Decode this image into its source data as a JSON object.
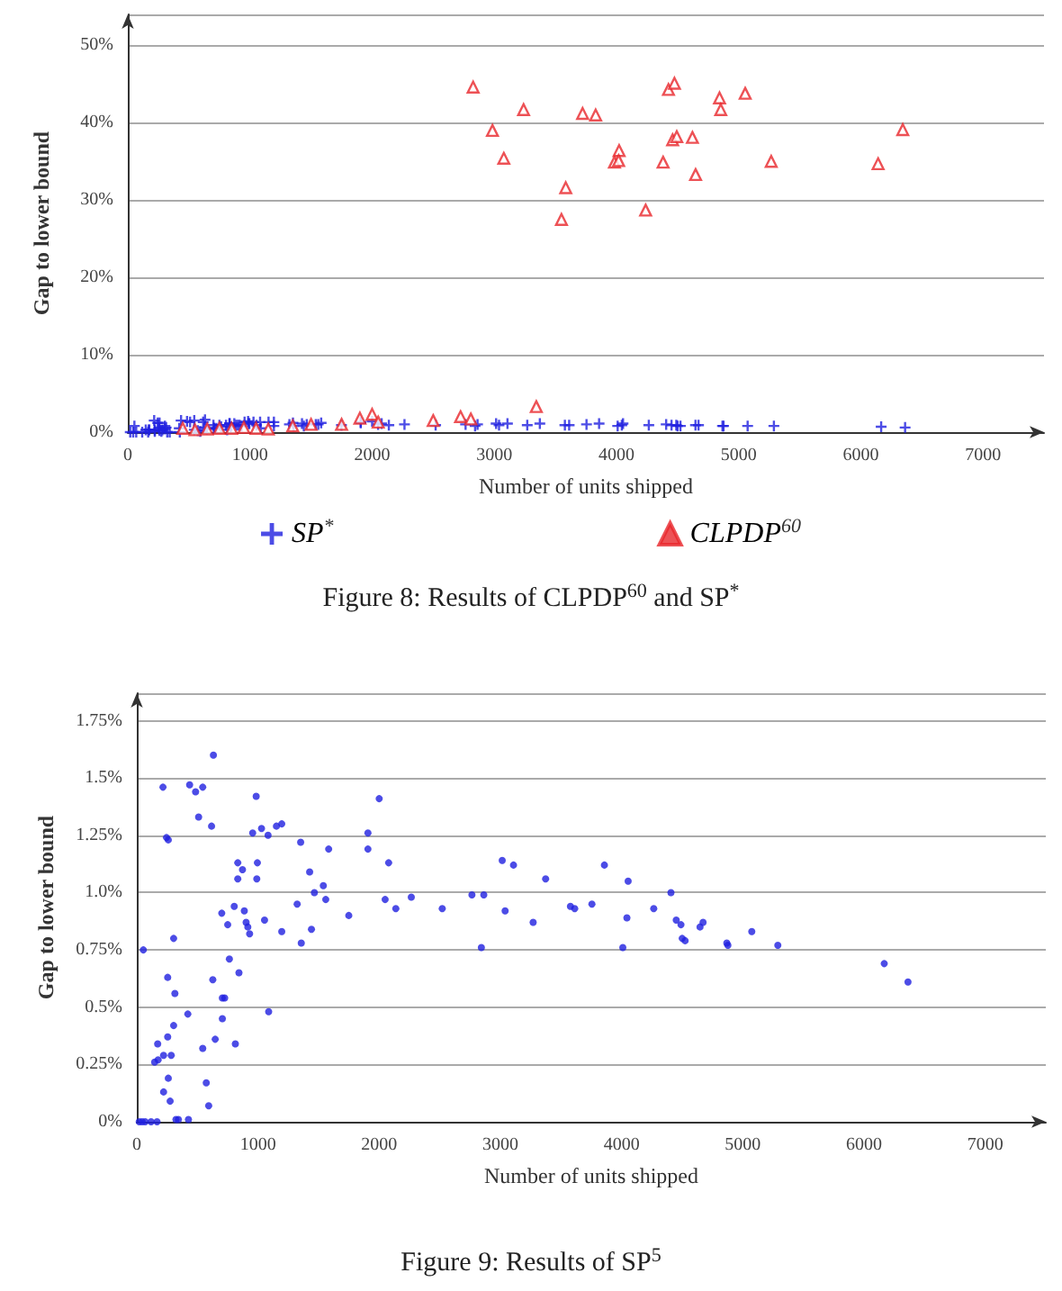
{
  "chart_data": [
    {
      "type": "scatter",
      "xlabel": "Number of units shipped",
      "ylabel": "Gap to lower bound",
      "annotations": [
        "Figure 8: Results of CLPDP$^{60}$ and SP$^{*}$"
      ],
      "xlim": [
        0,
        7500
      ],
      "xticks": [
        0,
        1000,
        2000,
        3000,
        4000,
        5000,
        6000,
        7000
      ],
      "ylim": [
        0,
        54
      ],
      "yticks": [
        {
          "value": 0,
          "label": "0%"
        },
        {
          "value": 10,
          "label": "10%"
        },
        {
          "value": 20,
          "label": "20%"
        },
        {
          "value": 30,
          "label": "30%"
        },
        {
          "value": 40,
          "label": "40%"
        },
        {
          "value": 50,
          "label": "50%"
        }
      ],
      "grid": "y",
      "legend": "bottom",
      "series": [
        {
          "name": "SP$^{*}$",
          "color": "#1f1fe0",
          "marker": "cross",
          "x": [
            632,
            216,
            436,
            544,
            485,
            510,
            245,
            260,
            617,
            985,
            956,
            1029,
            1083,
            1152,
            1196,
            1352,
            1583,
            833,
            995,
            872,
            833,
            990,
            1426,
            1539,
            1465,
            1323,
            1559,
            1749,
            701,
            804,
            887,
            750,
            902,
            916,
            931,
            1054,
            1196,
            1441,
            1357,
            764,
            304,
            843,
            627,
            255,
            314,
            706,
            725,
            54,
            1088,
            421,
            706,
            304,
            255,
            172,
            221,
            284,
            147,
            176,
            647,
            813,
            544,
            260,
            573,
            221,
            275,
            593,
            20,
            44,
            69,
            118,
            167,
            323,
            343,
            426,
            2000,
            1907,
            1907,
            2078,
            2049,
            2137,
            2265,
            2520,
            2765,
            2863,
            2843,
            3015,
            3108,
            3039,
            3270,
            3373,
            3578,
            3613,
            3755,
            3858,
            4054,
            4044,
            4010,
            4265,
            4407,
            4451,
            4490,
            4500,
            4524,
            4647,
            4672,
            4868,
            4877,
            5074,
            5289,
            6167,
            6363
          ],
          "values": [
            1.6,
            1.5,
            1.5,
            1.5,
            1.4,
            1.3,
            1.2,
            1.2,
            1.3,
            1.4,
            1.3,
            1.3,
            1.3,
            1.3,
            1.3,
            1.2,
            1.2,
            1.1,
            1.1,
            1.1,
            1.1,
            1.1,
            1.1,
            1.0,
            1.0,
            1.0,
            1.0,
            0.9,
            0.9,
            0.9,
            0.9,
            0.9,
            0.9,
            0.9,
            0.8,
            0.9,
            0.8,
            0.8,
            0.8,
            0.7,
            0.8,
            0.7,
            0.6,
            0.6,
            0.6,
            0.5,
            0.5,
            0.8,
            0.5,
            0.5,
            0.5,
            0.4,
            0.4,
            0.3,
            0.3,
            0.3,
            0.3,
            0.3,
            0.4,
            0.3,
            0.3,
            0.2,
            0.2,
            0.1,
            0.1,
            0.1,
            0,
            0,
            0,
            0,
            0,
            0,
            0,
            0,
            1.4,
            1.3,
            1.2,
            1.1,
            1.0,
            0.9,
            1.0,
            0.9,
            1.0,
            1.0,
            0.8,
            1.1,
            1.1,
            0.9,
            0.9,
            1.1,
            0.9,
            0.9,
            1.0,
            1.1,
            1.1,
            0.9,
            0.8,
            0.9,
            1.0,
            0.9,
            0.9,
            0.8,
            0.8,
            0.9,
            0.9,
            0.8,
            0.8,
            0.8,
            0.8,
            0.7,
            0.6
          ]
        },
        {
          "name": "CLPDP$^{60}$",
          "color": "#e8262b",
          "marker": "triangle",
          "x": [
            2827,
            2985,
            3078,
            3240,
            3585,
            3550,
            3723,
            3830,
            4022,
            3984,
            4018,
            4239,
            4382,
            4426,
            4475,
            4460,
            4494,
            4622,
            4648,
            4844,
            4854,
            5054,
            5267,
            6142,
            6344,
            450,
            550,
            650,
            750,
            850,
            950,
            1050,
            1150,
            1350,
            1500,
            1750,
            1900,
            2000,
            2050,
            2500,
            2724,
            2808,
            3344
          ],
          "values": [
            44.6,
            39.0,
            35.4,
            41.7,
            31.6,
            27.5,
            41.2,
            41.0,
            36.4,
            34.9,
            35.1,
            28.7,
            34.9,
            44.3,
            45.1,
            37.8,
            38.2,
            38.1,
            33.3,
            43.2,
            41.7,
            43.8,
            35.0,
            34.7,
            39.1,
            0.5,
            0.3,
            0.4,
            0.5,
            0.5,
            0.6,
            0.5,
            0.4,
            0.8,
            1.0,
            1.0,
            1.8,
            2.3,
            1.3,
            1.5,
            2.0,
            1.7,
            3.3
          ]
        }
      ]
    },
    {
      "type": "scatter",
      "xlabel": "Number of units shipped",
      "ylabel": "Gap to lower bound",
      "annotations": [
        "Figure 9: Results of SP$^{5}$"
      ],
      "xlim": [
        0,
        7500
      ],
      "xticks": [
        0,
        1000,
        2000,
        3000,
        4000,
        5000,
        6000,
        7000
      ],
      "ylim": [
        0,
        1.87
      ],
      "yticks": [
        {
          "value": 0,
          "label": "0%"
        },
        {
          "value": 0.25,
          "label": "0.25%"
        },
        {
          "value": 0.5,
          "label": "0.5%"
        },
        {
          "value": 0.75,
          "label": "0.75%"
        },
        {
          "value": 1,
          "label": "1.0%"
        },
        {
          "value": 1.25,
          "label": "1.25%"
        },
        {
          "value": 1.5,
          "label": "1.5%"
        },
        {
          "value": 1.75,
          "label": "1.75%"
        }
      ],
      "grid": "y",
      "series": [
        {
          "color": "#1f1fe0",
          "marker": "circle",
          "x": [
            632,
            216,
            436,
            544,
            485,
            510,
            245,
            260,
            617,
            985,
            956,
            1029,
            1083,
            1152,
            1196,
            1352,
            1583,
            833,
            995,
            872,
            833,
            990,
            1426,
            1539,
            1465,
            1323,
            1559,
            1749,
            701,
            804,
            887,
            750,
            902,
            916,
            931,
            1054,
            1196,
            1441,
            1357,
            764,
            304,
            843,
            627,
            255,
            314,
            706,
            725,
            54,
            1088,
            421,
            706,
            304,
            255,
            172,
            221,
            284,
            147,
            176,
            647,
            813,
            544,
            260,
            573,
            221,
            275,
            593,
            20,
            44,
            69,
            118,
            167,
            323,
            343,
            426,
            2000,
            1907,
            1907,
            2078,
            2049,
            2137,
            2265,
            2520,
            2765,
            2863,
            2843,
            3015,
            3108,
            3039,
            3270,
            3373,
            3578,
            3613,
            3755,
            3858,
            4054,
            4044,
            4010,
            4265,
            4407,
            4451,
            4490,
            4500,
            4524,
            4647,
            4672,
            4868,
            4877,
            5074,
            5289,
            6167,
            6363
          ],
          "values": [
            1.6,
            1.46,
            1.47,
            1.46,
            1.44,
            1.33,
            1.24,
            1.23,
            1.29,
            1.42,
            1.26,
            1.28,
            1.25,
            1.29,
            1.3,
            1.22,
            1.19,
            1.13,
            1.13,
            1.1,
            1.06,
            1.06,
            1.09,
            1.03,
            1.0,
            0.95,
            0.97,
            0.9,
            0.91,
            0.94,
            0.92,
            0.86,
            0.87,
            0.85,
            0.82,
            0.88,
            0.83,
            0.84,
            0.78,
            0.71,
            0.8,
            0.65,
            0.62,
            0.63,
            0.56,
            0.54,
            0.54,
            0.75,
            0.48,
            0.47,
            0.45,
            0.42,
            0.37,
            0.34,
            0.29,
            0.29,
            0.26,
            0.27,
            0.36,
            0.34,
            0.32,
            0.19,
            0.17,
            0.13,
            0.09,
            0.07,
            0,
            0,
            0,
            0,
            0,
            0.01,
            0.01,
            0.01,
            1.41,
            1.26,
            1.19,
            1.13,
            0.97,
            0.93,
            0.98,
            0.93,
            0.99,
            0.99,
            0.76,
            1.14,
            1.12,
            0.92,
            0.87,
            1.06,
            0.94,
            0.93,
            0.95,
            1.12,
            1.05,
            0.89,
            0.76,
            0.93,
            1.0,
            0.88,
            0.86,
            0.8,
            0.79,
            0.85,
            0.87,
            0.78,
            0.77,
            0.83,
            0.77,
            0.69,
            0.61
          ]
        }
      ]
    }
  ]
}
